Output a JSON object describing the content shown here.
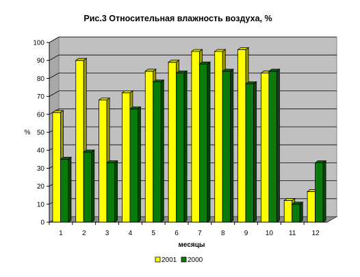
{
  "chart_data": {
    "type": "bar",
    "title": "Рис.3 Относительная влажность воздуха, %",
    "xlabel": "месяцы",
    "ylabel": "%",
    "categories": [
      "1",
      "2",
      "3",
      "4",
      "5",
      "6",
      "7",
      "8",
      "9",
      "10",
      "11",
      "12"
    ],
    "ylim": [
      0,
      100
    ],
    "yticks": [
      "0",
      "10",
      "20",
      "30",
      "40",
      "50",
      "60",
      "70",
      "80",
      "90",
      "100"
    ],
    "grid": true,
    "legend_position": "bottom",
    "series": [
      {
        "name": "2001",
        "color": "#ffff00",
        "values": [
          61,
          90,
          68,
          72,
          84,
          89,
          95,
          95,
          96,
          83,
          12,
          17
        ]
      },
      {
        "name": "2000",
        "color": "#0a7a0a",
        "values": [
          35,
          39,
          33,
          63,
          78,
          83,
          88,
          84,
          77,
          84,
          10,
          33
        ]
      }
    ],
    "plot_background": "#c0c0c0"
  }
}
